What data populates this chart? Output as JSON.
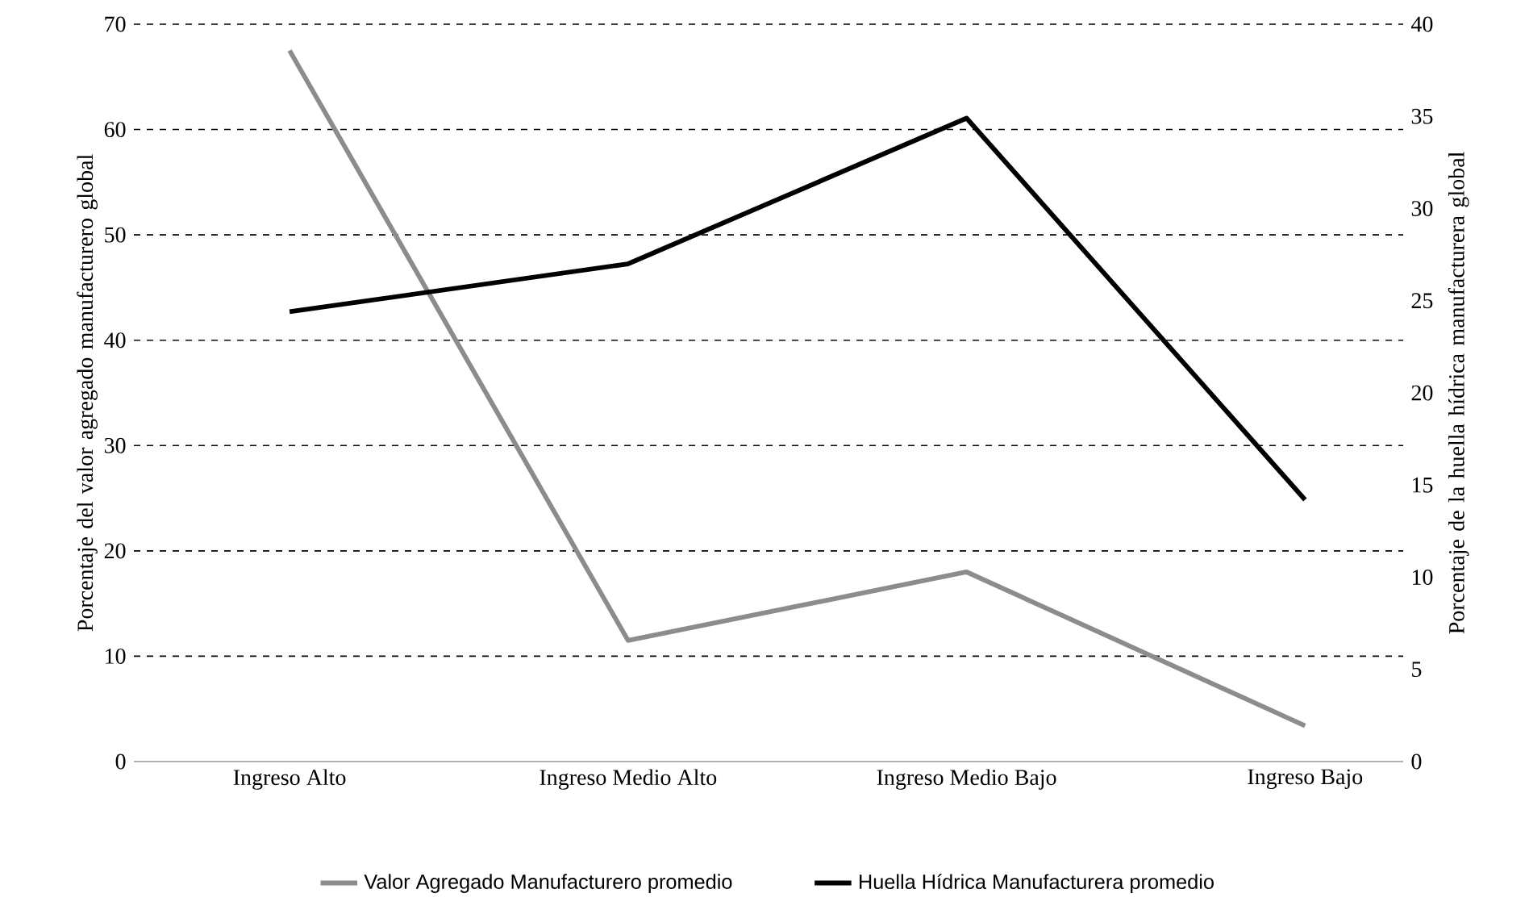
{
  "chart_data": {
    "type": "line",
    "categories": [
      "Ingreso Alto",
      "Ingreso Medio Alto",
      "Ingreso Medio Bajo",
      "Ingreso Bajo"
    ],
    "series": [
      {
        "name": "Valor Agregado Manufacturero promedio",
        "color": "#8c8c8c",
        "values": [
          67.5,
          11.5,
          18,
          3.4
        ],
        "axis": "y"
      },
      {
        "name": "Huella Hídrica Manufacturera promedio",
        "color": "#000000",
        "values": [
          24.4,
          27,
          34.9,
          14.2
        ],
        "axis": "y2"
      }
    ],
    "ylabel": "Porcentaje del valor agregado  manufacturero global",
    "y2label": "Porcentaje de la huella hídrica manufacturera global",
    "ylim": [
      0,
      70
    ],
    "yticks": [
      0,
      10,
      20,
      30,
      40,
      50,
      60,
      70
    ],
    "y2lim": [
      0,
      40
    ],
    "y2ticks": [
      0,
      5,
      10,
      15,
      20,
      25,
      30,
      35,
      40
    ],
    "grid": "y",
    "legend": "bottom"
  }
}
